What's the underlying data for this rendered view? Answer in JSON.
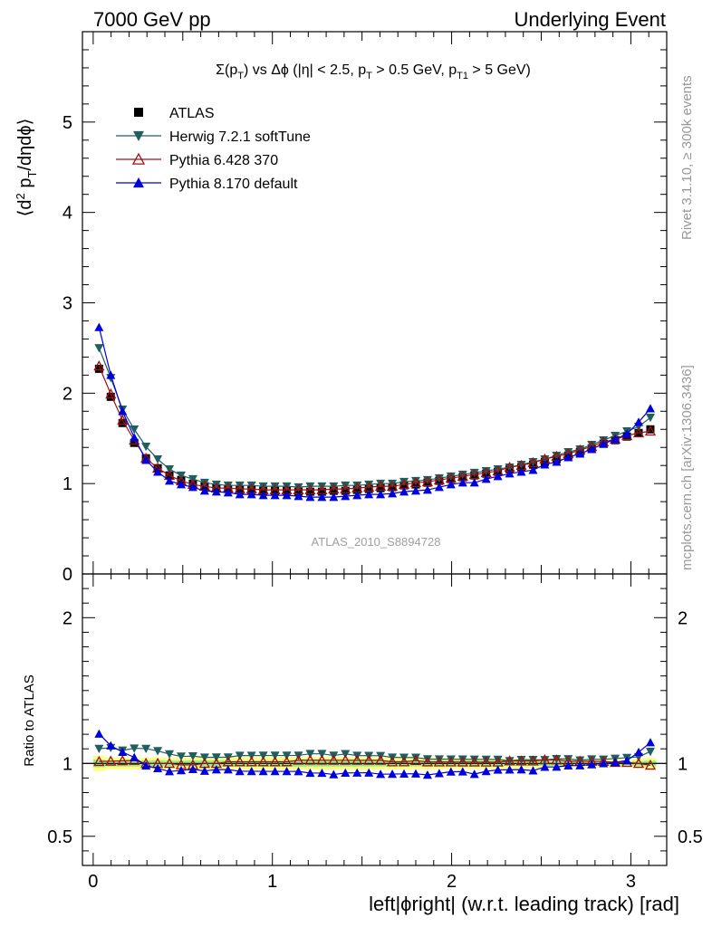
{
  "header": {
    "left_label": "7000 GeV pp",
    "right_label": "Underlying Event"
  },
  "side_labels": {
    "rivet": "Rivet 3.1.10, ≥ 300k events",
    "mcplots": "mcplots.cern.ch [arXiv:1306.3436]"
  },
  "chart_data": {
    "type": "scatter",
    "title": "Σ(pT) vs Δφ (|η| < 2.5, pT > 0.5 GeV, pT1 > 5 GeV)",
    "watermark": "ATLAS_2010_S8894728",
    "xlabel": "left|ϕright| (w.r.t. leading track) [rad]",
    "ylabel": "⟨d² pT/dηdϕ⟩",
    "ratio_ylabel": "Ratio to ATLAS",
    "xlim": [
      -0.06,
      3.2
    ],
    "ylim": [
      0,
      6
    ],
    "ratio_ylim": [
      0.3,
      2.3
    ],
    "x_ticks": [
      0,
      1,
      2,
      3
    ],
    "y_ticks": [
      0,
      1,
      2,
      3,
      4,
      5
    ],
    "ratio_y_ticks": [
      0.5,
      1,
      2
    ],
    "legend_position": "top-left",
    "x": [
      0.0327,
      0.0982,
      0.1636,
      0.2291,
      0.2945,
      0.36,
      0.4254,
      0.4909,
      0.5563,
      0.6218,
      0.6872,
      0.7527,
      0.8181,
      0.8836,
      0.949,
      1.0145,
      1.0799,
      1.1454,
      1.2108,
      1.2763,
      1.3417,
      1.4072,
      1.4726,
      1.5381,
      1.6035,
      1.669,
      1.7344,
      1.7999,
      1.8653,
      1.9308,
      1.9962,
      2.0617,
      2.1271,
      2.1926,
      2.258,
      2.3235,
      2.3889,
      2.4544,
      2.5198,
      2.5853,
      2.6507,
      2.7162,
      2.7816,
      2.8471,
      2.9125,
      2.978,
      3.0434,
      3.1089
    ],
    "series": [
      {
        "name": "ATLAS",
        "color": "#000000",
        "marker": "square",
        "values": [
          2.27,
          1.96,
          1.67,
          1.45,
          1.28,
          1.17,
          1.09,
          1.04,
          1.0,
          0.97,
          0.95,
          0.94,
          0.93,
          0.93,
          0.92,
          0.92,
          0.92,
          0.91,
          0.91,
          0.91,
          0.92,
          0.92,
          0.93,
          0.94,
          0.95,
          0.96,
          0.98,
          0.99,
          1.01,
          1.03,
          1.05,
          1.07,
          1.09,
          1.11,
          1.13,
          1.16,
          1.18,
          1.21,
          1.24,
          1.27,
          1.31,
          1.35,
          1.39,
          1.44,
          1.48,
          1.52,
          1.56,
          1.6
        ],
        "band": [
          0.06,
          0.04,
          0.035,
          0.03,
          0.025,
          0.025,
          0.02,
          0.02,
          0.02,
          0.02,
          0.02,
          0.02,
          0.02,
          0.02,
          0.02,
          0.02,
          0.02,
          0.02,
          0.02,
          0.02,
          0.02,
          0.02,
          0.02,
          0.02,
          0.02,
          0.02,
          0.02,
          0.02,
          0.02,
          0.02,
          0.02,
          0.02,
          0.02,
          0.02,
          0.02,
          0.02,
          0.02,
          0.02,
          0.02,
          0.02,
          0.02,
          0.02,
          0.02,
          0.02,
          0.02,
          0.02,
          0.025,
          0.03
        ]
      },
      {
        "name": "Herwig 7.2.1 softTune",
        "color": "#1f5f5f",
        "marker": "triangle-down",
        "values": [
          2.5,
          2.17,
          1.82,
          1.6,
          1.41,
          1.27,
          1.16,
          1.09,
          1.05,
          1.01,
          0.99,
          0.98,
          0.98,
          0.98,
          0.97,
          0.97,
          0.97,
          0.96,
          0.97,
          0.97,
          0.97,
          0.98,
          0.98,
          0.99,
          1.0,
          1.0,
          1.02,
          1.03,
          1.04,
          1.06,
          1.08,
          1.1,
          1.12,
          1.14,
          1.16,
          1.18,
          1.21,
          1.24,
          1.27,
          1.31,
          1.35,
          1.38,
          1.43,
          1.48,
          1.53,
          1.58,
          1.63,
          1.73
        ]
      },
      {
        "name": "Pythia 6.428 370",
        "color": "#a01010",
        "marker": "triangle-up-open",
        "values": [
          2.3,
          1.99,
          1.7,
          1.48,
          1.28,
          1.17,
          1.09,
          1.03,
          0.99,
          0.97,
          0.95,
          0.95,
          0.94,
          0.94,
          0.93,
          0.93,
          0.93,
          0.93,
          0.93,
          0.93,
          0.94,
          0.94,
          0.95,
          0.96,
          0.97,
          0.97,
          0.99,
          1.01,
          1.02,
          1.04,
          1.06,
          1.08,
          1.1,
          1.12,
          1.14,
          1.18,
          1.2,
          1.23,
          1.27,
          1.3,
          1.33,
          1.37,
          1.41,
          1.46,
          1.49,
          1.53,
          1.56,
          1.58
        ]
      },
      {
        "name": "Pythia 8.170 default",
        "color": "#0000dd",
        "marker": "triangle-up",
        "values": [
          2.73,
          2.2,
          1.8,
          1.51,
          1.26,
          1.13,
          1.03,
          0.99,
          0.96,
          0.92,
          0.91,
          0.9,
          0.88,
          0.88,
          0.87,
          0.87,
          0.87,
          0.86,
          0.85,
          0.85,
          0.85,
          0.86,
          0.87,
          0.88,
          0.88,
          0.89,
          0.91,
          0.92,
          0.93,
          0.96,
          0.99,
          1.01,
          1.01,
          1.05,
          1.08,
          1.11,
          1.13,
          1.15,
          1.21,
          1.24,
          1.29,
          1.33,
          1.38,
          1.44,
          1.49,
          1.55,
          1.68,
          1.83
        ]
      }
    ]
  }
}
